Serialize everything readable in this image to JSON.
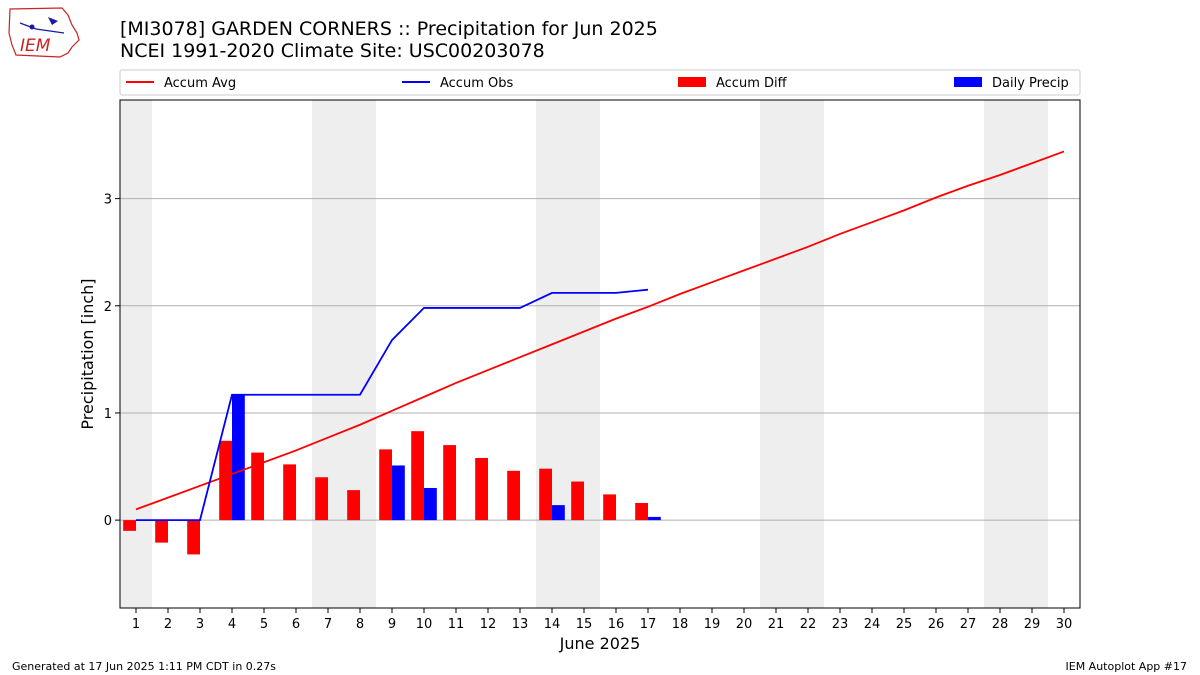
{
  "header": {
    "title_line1": "[MI3078] GARDEN CORNERS :: Precipitation for Jun 2025",
    "title_line2": "NCEI 1991-2020 Climate Site: USC00203078",
    "logo_text": "IEM"
  },
  "footer": {
    "left": "Generated at 17 Jun 2025 1:11 PM CDT in 0.27s",
    "right": "IEM Autoplot App #17"
  },
  "colors": {
    "accum_avg": "#ff0000",
    "accum_obs": "#0000ff",
    "accum_diff": "#ff0000",
    "daily_precip": "#0000ff",
    "weekend_shade": "#eeeeee",
    "grid": "#b0b0b0"
  },
  "chart_data": {
    "type": "bar",
    "xlabel": "June 2025",
    "ylabel": "Precipitation [inch]",
    "xlim": [
      0.5,
      30.5
    ],
    "ylim": [
      -0.82,
      3.92
    ],
    "yticks": [
      0,
      1,
      2,
      3
    ],
    "grid": "horizontal",
    "legend_position": "top",
    "legend": [
      {
        "label": "Accum Avg",
        "kind": "line",
        "color": "#ff0000"
      },
      {
        "label": "Accum Obs",
        "kind": "line",
        "color": "#0000ff"
      },
      {
        "label": "Accum Diff",
        "kind": "bar",
        "color": "#ff0000"
      },
      {
        "label": "Daily Precip",
        "kind": "bar",
        "color": "#0000ff"
      }
    ],
    "days": [
      1,
      2,
      3,
      4,
      5,
      6,
      7,
      8,
      9,
      10,
      11,
      12,
      13,
      14,
      15,
      16,
      17,
      18,
      19,
      20,
      21,
      22,
      23,
      24,
      25,
      26,
      27,
      28,
      29,
      30
    ],
    "weekend_days": [
      1,
      7,
      8,
      14,
      15,
      21,
      22,
      28,
      29
    ],
    "accum_avg": [
      0.1,
      0.21,
      0.32,
      0.43,
      0.54,
      0.65,
      0.77,
      0.89,
      1.02,
      1.15,
      1.28,
      1.4,
      1.52,
      1.64,
      1.76,
      1.88,
      1.99,
      2.11,
      2.22,
      2.33,
      2.44,
      2.55,
      2.67,
      2.78,
      2.89,
      3.01,
      3.12,
      3.22,
      3.33,
      3.44
    ],
    "accum_obs": [
      0.0,
      0.0,
      0.0,
      1.17,
      1.17,
      1.17,
      1.17,
      1.17,
      1.68,
      1.98,
      1.98,
      1.98,
      1.98,
      2.12,
      2.12,
      2.12,
      2.15
    ],
    "accum_diff": [
      -0.1,
      -0.21,
      -0.32,
      0.74,
      0.63,
      0.52,
      0.4,
      0.28,
      0.66,
      0.83,
      0.7,
      0.58,
      0.46,
      0.48,
      0.36,
      0.24,
      0.16
    ],
    "daily_precip": [
      0.0,
      0.0,
      0.0,
      1.17,
      0.0,
      0.0,
      0.0,
      0.0,
      0.51,
      0.3,
      0.0,
      0.0,
      0.0,
      0.14,
      0.0,
      0.0,
      0.03
    ]
  }
}
